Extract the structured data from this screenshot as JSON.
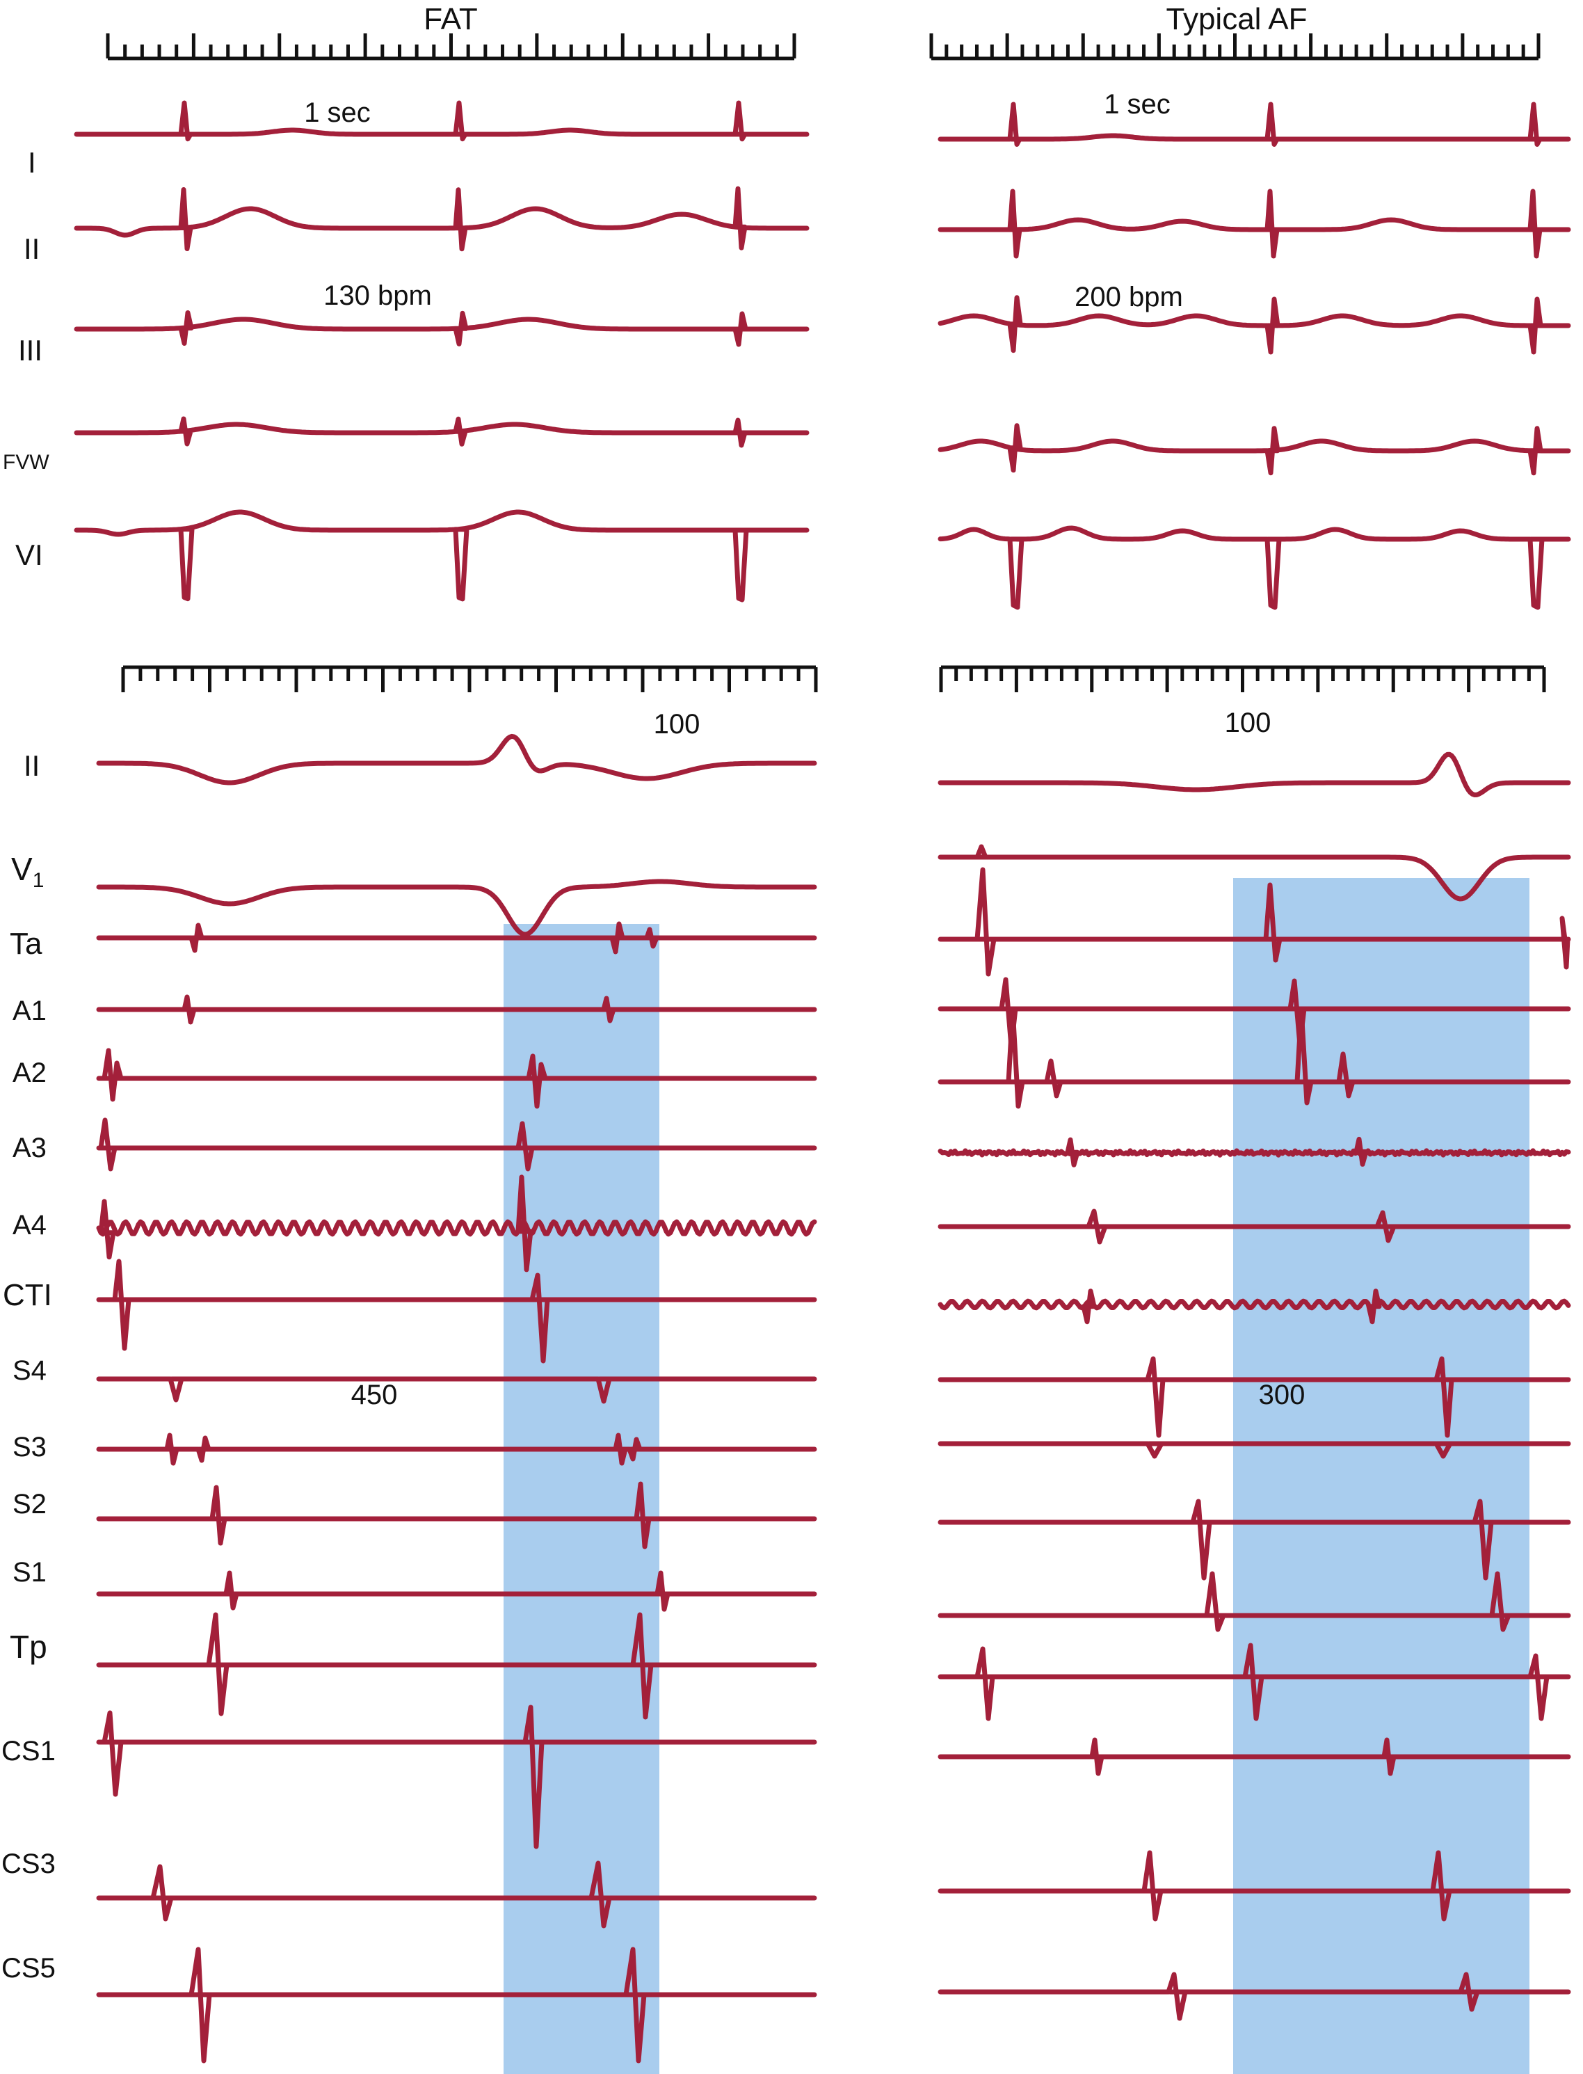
{
  "panels": {
    "left": {
      "title": "FAT",
      "time_label": "1 sec",
      "rate_label": "130 bpm",
      "interval_label": "100",
      "cycle_label": "450"
    },
    "right": {
      "title": "Typical AF",
      "time_label": "1 sec",
      "rate_label": "200 bpm",
      "interval_label": "100",
      "cycle_label": "300"
    }
  },
  "surface_leads": [
    "I",
    "II",
    "III",
    "FVW",
    "VI"
  ],
  "intracardiac_leads": [
    "II",
    "V",
    "Ta",
    "A1",
    "A2",
    "A3",
    "A4",
    "CTI",
    "S4",
    "S3",
    "S2",
    "S1",
    "Tp",
    "CS1",
    "CS3",
    "CS5"
  ],
  "v1_subscript": "1",
  "colors": {
    "trace": "#a3203a",
    "shade": "#a9cdee",
    "text": "#111111"
  }
}
